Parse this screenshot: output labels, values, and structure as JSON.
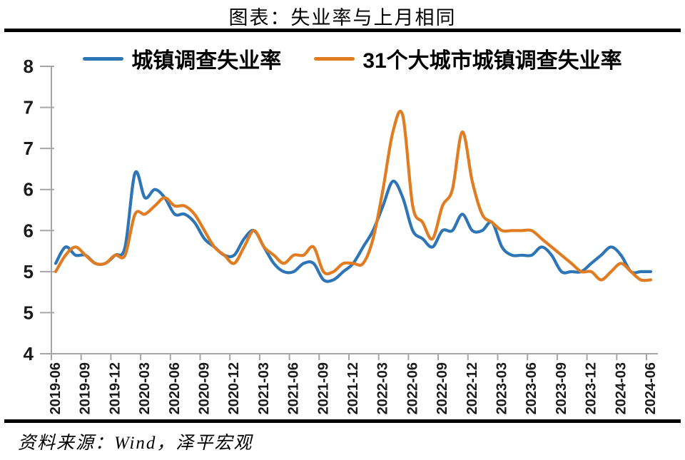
{
  "title": "图表：失业率与上月相同",
  "source": "资料来源：Wind，泽平宏观",
  "colors": {
    "series_blue": "#2E75B6",
    "series_orange": "#E07C21",
    "axis": "#A6A6A6",
    "tick_label": "#1A1A1A",
    "rule": "#000000"
  },
  "legend": [
    {
      "label": "城镇调查失业率",
      "color": "#2E75B6"
    },
    {
      "label": "31个大城市城镇调查失业率",
      "color": "#E07C21"
    }
  ],
  "chart_data": {
    "type": "line",
    "title": "图表：失业率与上月相同",
    "xlabel": "",
    "ylabel": "",
    "grid": false,
    "legend_position": "top-center",
    "line_style": "smooth",
    "frequency": "monthly",
    "x_start": "2019-06",
    "x_end": "2024-06",
    "categories": [
      "2019-06",
      "2019-07",
      "2019-08",
      "2019-09",
      "2019-10",
      "2019-11",
      "2019-12",
      "2020-01",
      "2020-02",
      "2020-03",
      "2020-04",
      "2020-05",
      "2020-06",
      "2020-07",
      "2020-08",
      "2020-09",
      "2020-10",
      "2020-11",
      "2020-12",
      "2021-01",
      "2021-02",
      "2021-03",
      "2021-04",
      "2021-05",
      "2021-06",
      "2021-07",
      "2021-08",
      "2021-09",
      "2021-10",
      "2021-11",
      "2021-12",
      "2022-01",
      "2022-02",
      "2022-03",
      "2022-04",
      "2022-05",
      "2022-06",
      "2022-07",
      "2022-08",
      "2022-09",
      "2022-10",
      "2022-11",
      "2022-12",
      "2023-01",
      "2023-02",
      "2023-03",
      "2023-04",
      "2023-05",
      "2023-06",
      "2023-07",
      "2023-08",
      "2023-09",
      "2023-10",
      "2023-11",
      "2023-12",
      "2024-01",
      "2024-02",
      "2024-03",
      "2024-04",
      "2024-05",
      "2024-06"
    ],
    "x_tick_labels": [
      "2019-06",
      "2019-09",
      "2019-12",
      "2020-03",
      "2020-06",
      "2020-09",
      "2020-12",
      "2021-03",
      "2021-06",
      "2021-09",
      "2021-12",
      "2022-03",
      "2022-06",
      "2022-09",
      "2022-12",
      "2023-03",
      "2023-06",
      "2023-09",
      "2023-12",
      "2024-03",
      "2024-06"
    ],
    "y_axis": {
      "tick_labels_shown": [
        "8",
        "7",
        "7",
        "6",
        "6",
        "5",
        "5",
        "4"
      ],
      "tick_values": [
        7.5,
        7.0,
        6.5,
        6.0,
        5.5,
        5.0,
        4.5,
        4.0
      ],
      "ylim": [
        4.0,
        7.5
      ],
      "note": "integer-rounded labels on 0.5-step ticks"
    },
    "series": [
      {
        "name": "城镇调查失业率",
        "color": "#2E75B6",
        "values": [
          5.1,
          5.3,
          5.2,
          5.2,
          5.1,
          5.1,
          5.2,
          5.3,
          6.2,
          5.9,
          6.0,
          5.9,
          5.7,
          5.7,
          5.6,
          5.4,
          5.3,
          5.2,
          5.2,
          5.4,
          5.5,
          5.3,
          5.1,
          5.0,
          5.0,
          5.1,
          5.1,
          4.9,
          4.9,
          5.0,
          5.1,
          5.3,
          5.5,
          5.8,
          6.1,
          5.9,
          5.5,
          5.4,
          5.3,
          5.5,
          5.5,
          5.7,
          5.5,
          5.5,
          5.6,
          5.3,
          5.2,
          5.2,
          5.2,
          5.3,
          5.2,
          5.0,
          5.0,
          5.0,
          5.1,
          5.2,
          5.3,
          5.2,
          5.0,
          5.0,
          5.0
        ]
      },
      {
        "name": "31个大城市城镇调查失业率",
        "color": "#E07C21",
        "values": [
          5.0,
          5.2,
          5.3,
          5.2,
          5.1,
          5.1,
          5.2,
          5.2,
          5.7,
          5.7,
          5.8,
          5.9,
          5.8,
          5.8,
          5.7,
          5.5,
          5.3,
          5.2,
          5.1,
          5.3,
          5.5,
          5.3,
          5.2,
          5.1,
          5.2,
          5.2,
          5.3,
          5.0,
          5.0,
          5.1,
          5.1,
          5.1,
          5.4,
          6.0,
          6.7,
          6.9,
          5.8,
          5.6,
          5.4,
          5.8,
          6.0,
          6.7,
          6.1,
          5.7,
          5.6,
          5.5,
          5.5,
          5.5,
          5.5,
          5.4,
          5.3,
          5.2,
          5.1,
          5.0,
          5.0,
          4.9,
          5.0,
          5.1,
          5.0,
          4.9,
          4.9
        ]
      }
    ]
  }
}
